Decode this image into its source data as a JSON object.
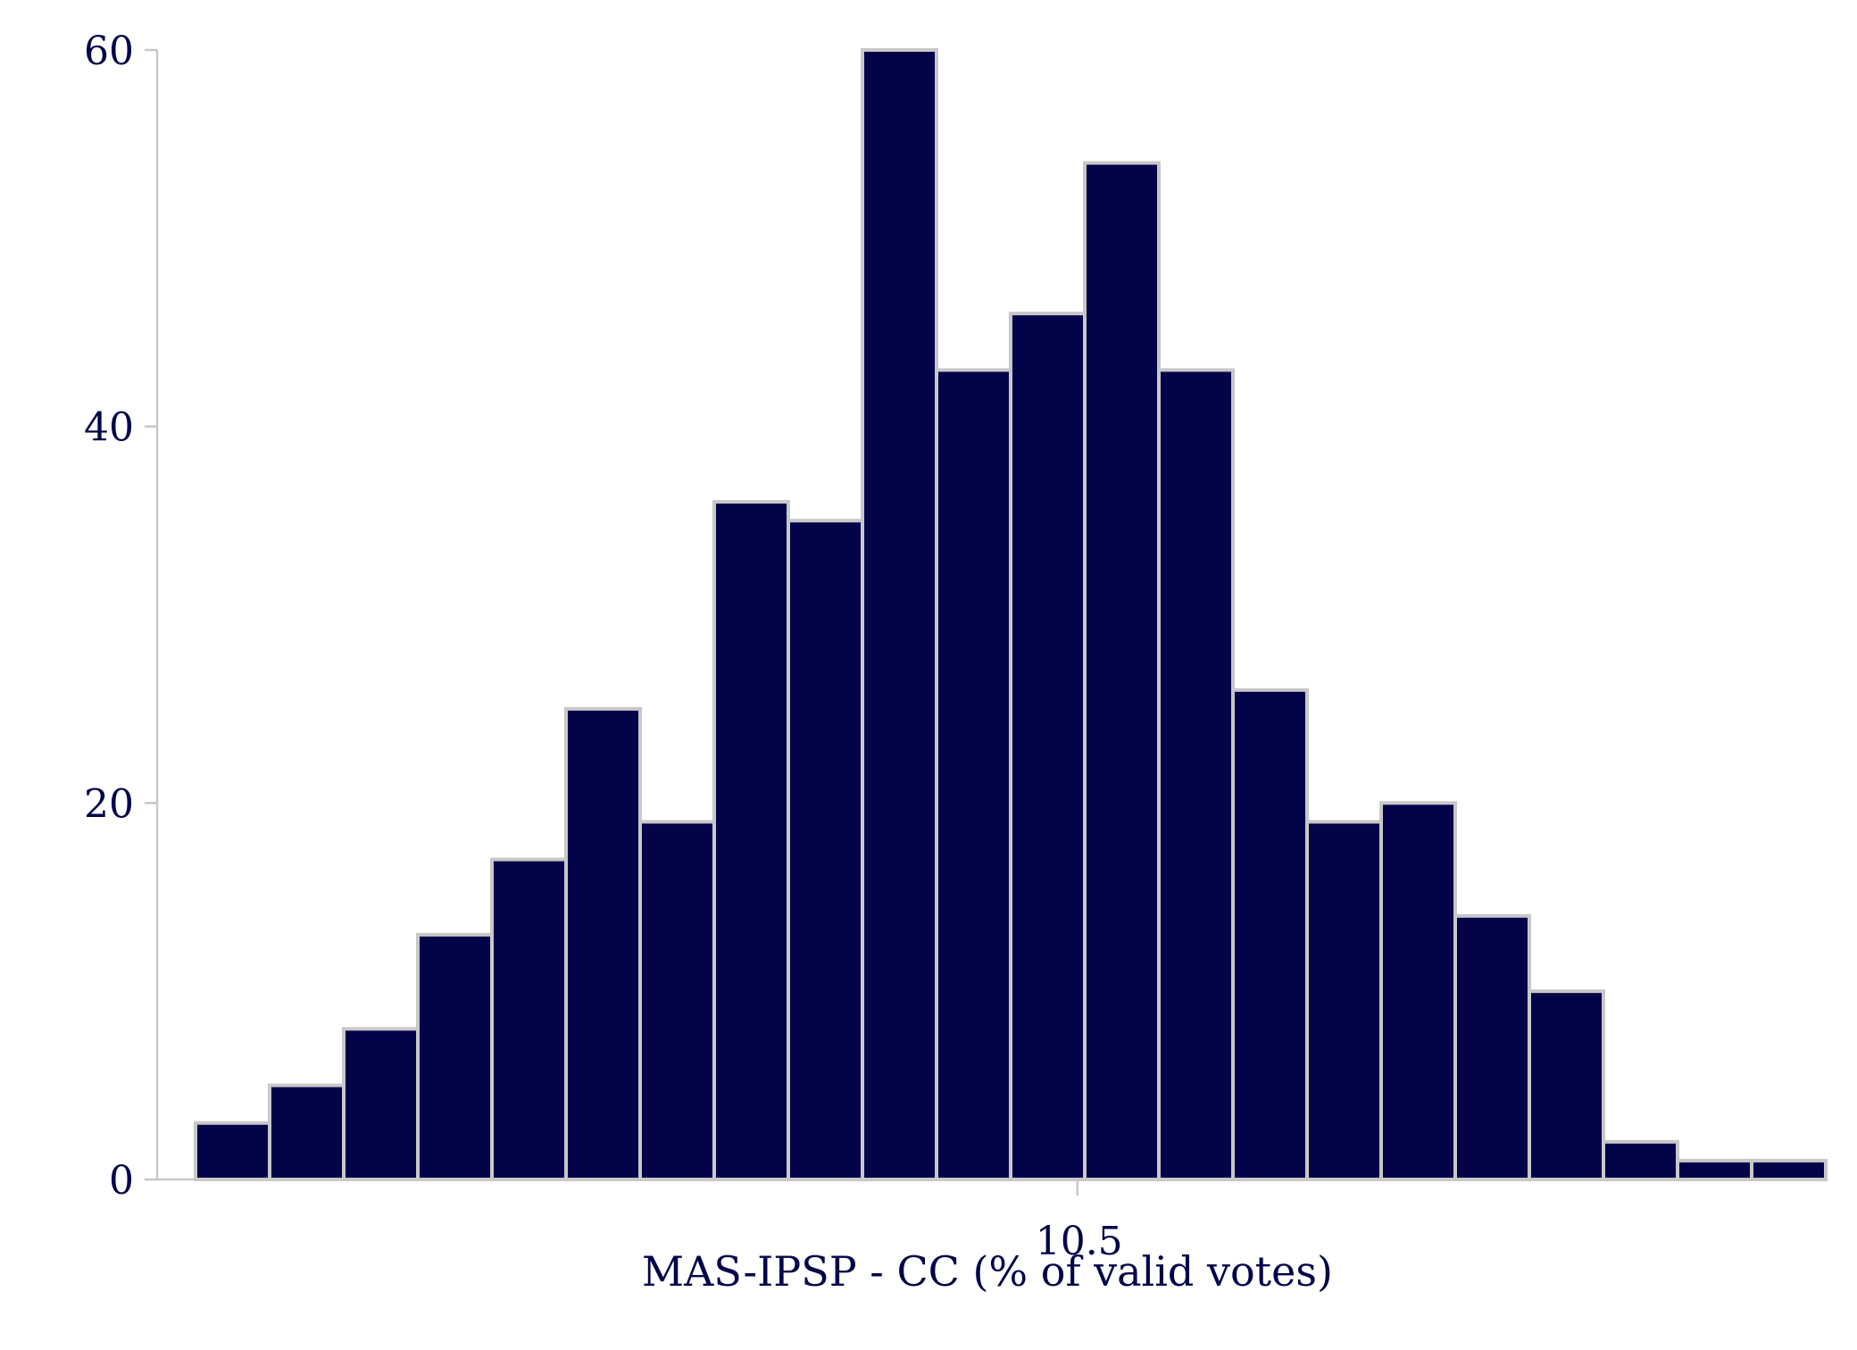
{
  "chart_data": {
    "type": "bar",
    "title": "",
    "xlabel": "MAS-IPSP - CC (% of valid votes)",
    "ylabel": "",
    "ylim": [
      0,
      60
    ],
    "yticks": [
      0,
      20,
      40,
      60
    ],
    "xticks": [
      "10.5"
    ],
    "xtick_bin_position": 11.9,
    "grid": false,
    "legend": "none",
    "colors": {
      "bar_fill": "#03034a",
      "bar_edge": "#c8c8c8",
      "text": "#03034a",
      "axis": "#c8c8c8"
    },
    "values": [
      3,
      5,
      8,
      13,
      17,
      25,
      19,
      36,
      35,
      60,
      43,
      46,
      54,
      43,
      26,
      19,
      20,
      14,
      10,
      2,
      1,
      1
    ]
  }
}
